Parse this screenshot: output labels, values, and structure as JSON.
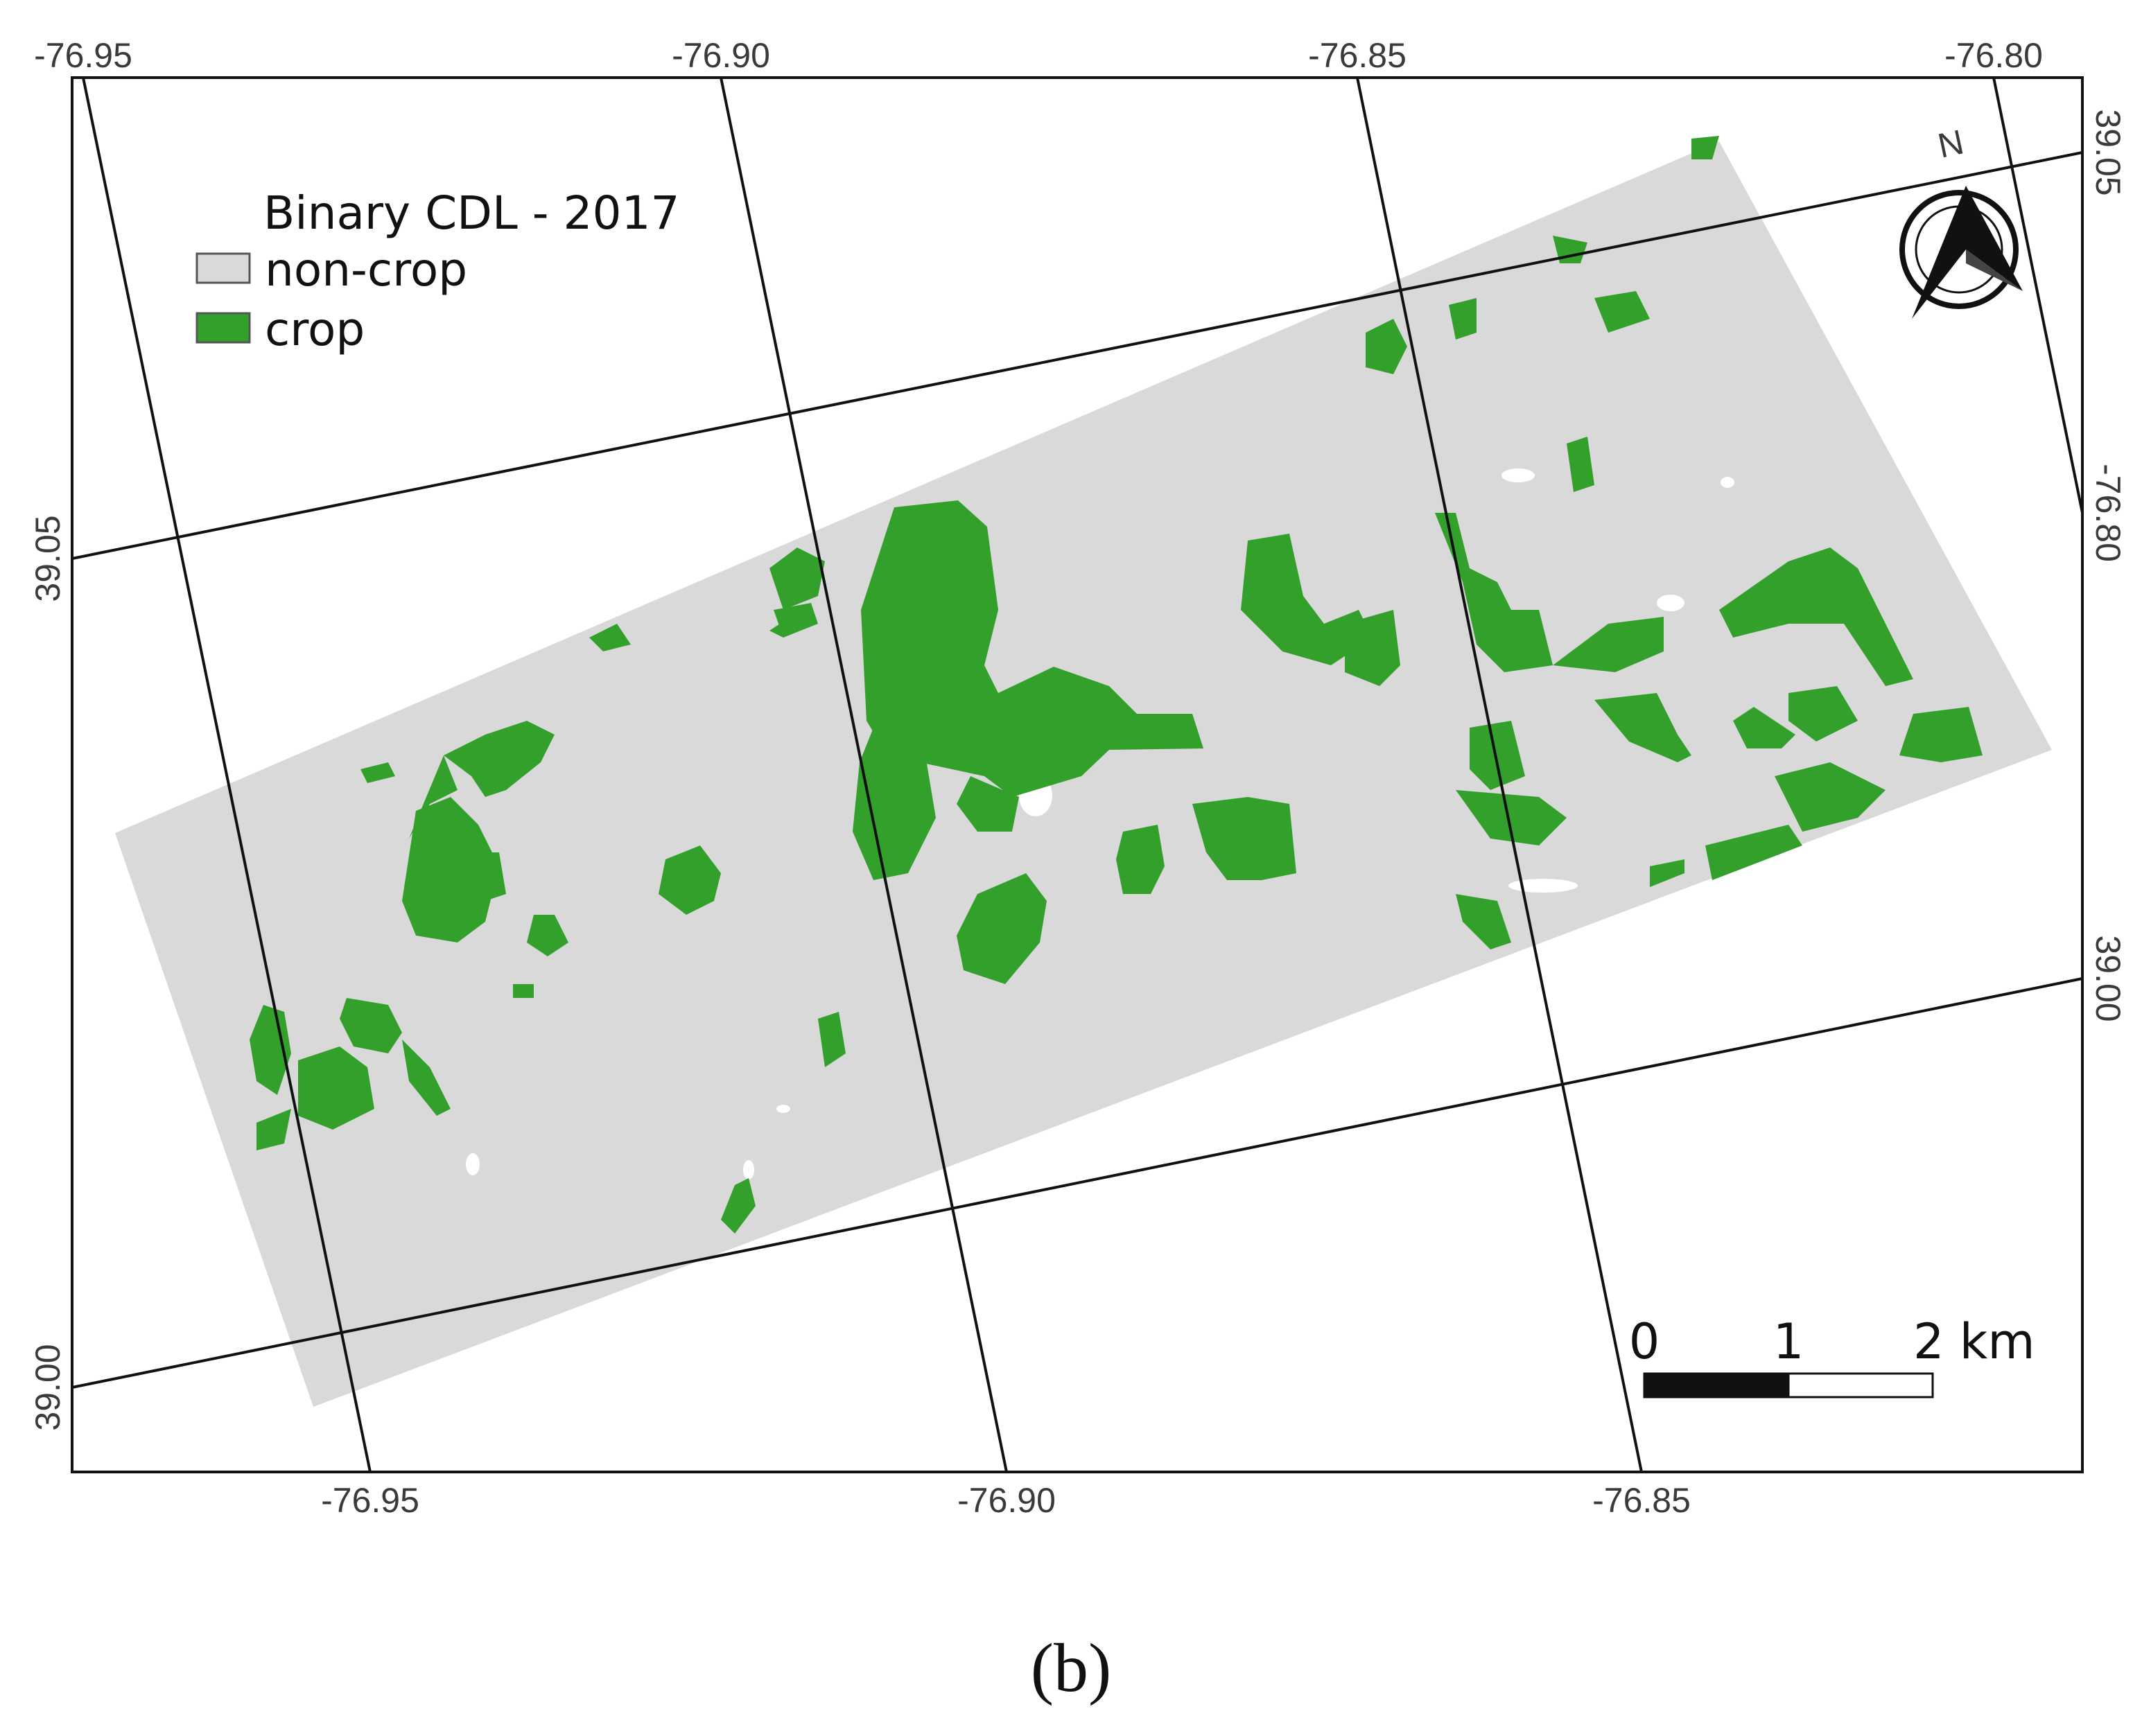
{
  "legend": {
    "title": "Binary CDL - 2017",
    "items": [
      {
        "label": "non-crop",
        "color": "#d9d9d9"
      },
      {
        "label": "crop",
        "color": "#33a02c"
      }
    ]
  },
  "top_axis": [
    "-76.95",
    "-76.90",
    "-76.85",
    "-76.80"
  ],
  "bottom_axis": [
    "-76.95",
    "-76.90",
    "-76.85"
  ],
  "left_axis": [
    "39.05",
    "39.00"
  ],
  "right_axis": [
    "39.05",
    "-76.80",
    "39.00"
  ],
  "scale_bar": {
    "labels": [
      "0",
      "1",
      "2 km"
    ]
  },
  "north_arrow": {
    "label": "N",
    "icon": "north-arrow-icon"
  },
  "caption": "(b)",
  "colors": {
    "non_crop": "#d9d9d9",
    "crop": "#33a02c",
    "grid": "#111111"
  }
}
